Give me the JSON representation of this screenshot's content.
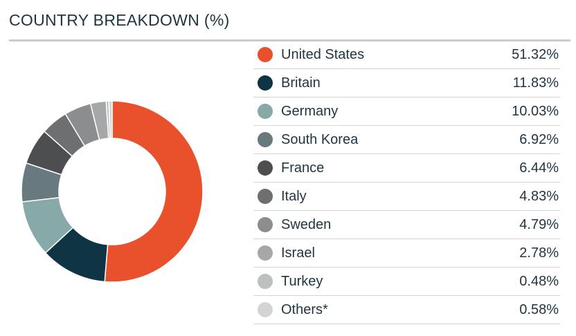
{
  "title": "COUNTRY BREAKDOWN (%)",
  "chart_data": {
    "type": "pie",
    "title": "COUNTRY BREAKDOWN (%)",
    "legend_position": "right",
    "categories": [
      "United States",
      "Britain",
      "Germany",
      "South Korea",
      "France",
      "Italy",
      "Sweden",
      "Israel",
      "Turkey",
      "Others*"
    ],
    "values": [
      51.32,
      11.83,
      10.03,
      6.92,
      6.44,
      4.83,
      4.79,
      2.78,
      0.48,
      0.58
    ],
    "value_labels": [
      "51.32%",
      "11.83%",
      "10.03%",
      "6.92%",
      "6.44%",
      "4.83%",
      "4.79%",
      "2.78%",
      "0.48%",
      "0.58%"
    ],
    "colors": [
      "#e9502c",
      "#0f3443",
      "#87aaa8",
      "#687a7d",
      "#4c4e50",
      "#6d6f71",
      "#8b8d8f",
      "#a5a7a9",
      "#bdbfc1",
      "#d3d5d4"
    ]
  }
}
